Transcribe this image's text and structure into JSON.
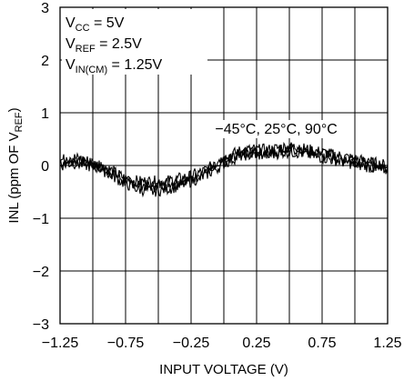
{
  "chart_data": {
    "type": "line",
    "title": "",
    "xlabel": "INPUT VOLTAGE (V)",
    "ylabel": {
      "prefix": "INL (ppm OF V",
      "sub": "REF",
      "suffix": ")"
    },
    "xlim": [
      -1.25,
      1.25
    ],
    "ylim": [
      -3,
      3
    ],
    "x_ticks": [
      -1.25,
      -1.0,
      -0.75,
      -0.5,
      -0.25,
      0,
      0.25,
      0.5,
      0.75,
      1.0,
      1.25
    ],
    "x_tick_labels": [
      "-1.25",
      "",
      "-0.75",
      "",
      "-0.25",
      "",
      "0.25",
      "",
      "0.75",
      "",
      "1.25"
    ],
    "y_ticks": [
      -3,
      -2,
      -1,
      0,
      1,
      2,
      3
    ],
    "y_tick_labels": [
      "-3",
      "-2",
      "-1",
      "0",
      "1",
      "2",
      "3"
    ],
    "grid": true,
    "conditions": [
      {
        "main": "V",
        "sub": "CC",
        "rest": " = 5V"
      },
      {
        "main": "V",
        "sub": "REF",
        "rest": " = 2.5V"
      },
      {
        "main": "V",
        "sub": "IN(CM)",
        "rest": " = 1.25V"
      }
    ],
    "annotation": "−45°C, 25°C, 90°C",
    "series": [
      {
        "x": [
          -1.25,
          -1.15,
          -1.05,
          -0.95,
          -0.85,
          -0.75,
          -0.65,
          -0.55,
          -0.45,
          -0.35,
          -0.25,
          -0.15,
          -0.05,
          0.05,
          0.15,
          0.25,
          0.35,
          0.45,
          0.55,
          0.65,
          0.75,
          0.85,
          0.95,
          1.05,
          1.15,
          1.25
        ],
        "y": [
          0.05,
          0.1,
          0.05,
          0.0,
          -0.15,
          -0.3,
          -0.35,
          -0.4,
          -0.35,
          -0.3,
          -0.25,
          -0.15,
          0.0,
          0.15,
          0.25,
          0.25,
          0.25,
          0.3,
          0.3,
          0.25,
          0.2,
          0.15,
          0.1,
          0.05,
          0.0,
          -0.05
        ]
      },
      {
        "x": [
          -1.25,
          -1.15,
          -1.05,
          -0.95,
          -0.85,
          -0.75,
          -0.65,
          -0.55,
          -0.45,
          -0.35,
          -0.25,
          -0.15,
          -0.05,
          0.05,
          0.15,
          0.25,
          0.35,
          0.45,
          0.55,
          0.65,
          0.75,
          0.85,
          0.95,
          1.05,
          1.15,
          1.25
        ],
        "y": [
          0.1,
          0.15,
          0.1,
          0.0,
          -0.1,
          -0.25,
          -0.3,
          -0.3,
          -0.3,
          -0.25,
          -0.2,
          -0.1,
          0.05,
          0.2,
          0.3,
          0.3,
          0.3,
          0.35,
          0.35,
          0.3,
          0.25,
          0.2,
          0.15,
          0.1,
          0.05,
          0.0
        ]
      },
      {
        "x": [
          -1.25,
          -1.15,
          -1.05,
          -0.95,
          -0.85,
          -0.75,
          -0.65,
          -0.55,
          -0.45,
          -0.35,
          -0.25,
          -0.15,
          -0.05,
          0.05,
          0.15,
          0.25,
          0.35,
          0.45,
          0.55,
          0.65,
          0.75,
          0.85,
          0.95,
          1.05,
          1.15,
          1.25
        ],
        "y": [
          0.0,
          0.05,
          0.0,
          -0.05,
          -0.2,
          -0.35,
          -0.45,
          -0.5,
          -0.45,
          -0.4,
          -0.3,
          -0.2,
          -0.05,
          0.1,
          0.2,
          0.2,
          0.2,
          0.25,
          0.25,
          0.2,
          0.15,
          0.1,
          0.05,
          0.0,
          -0.05,
          -0.1
        ]
      }
    ]
  }
}
